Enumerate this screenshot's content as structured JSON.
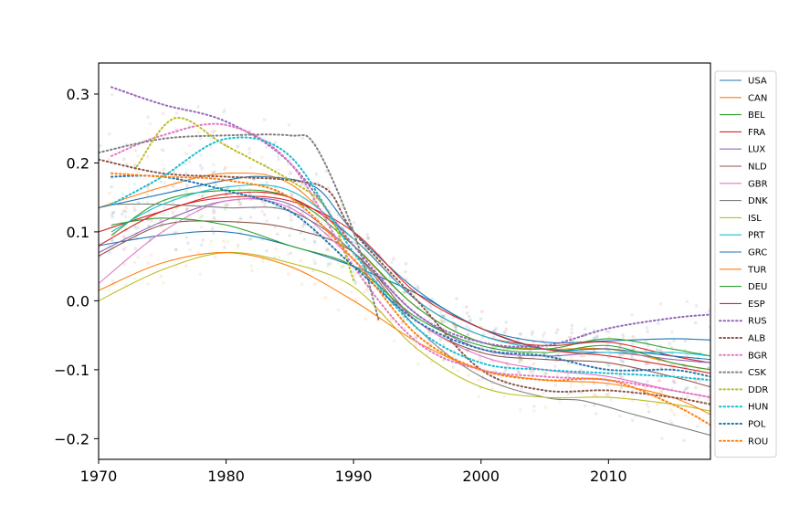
{
  "chart_data": {
    "type": "line",
    "title": "",
    "xlabel": "",
    "ylabel": "",
    "xlim": [
      1970,
      2018
    ],
    "ylim": [
      -0.23,
      0.345
    ],
    "xticks": [
      1970,
      1980,
      1990,
      2000,
      2010
    ],
    "yticks": [
      -0.2,
      -0.1,
      0.0,
      0.1,
      0.2,
      0.3
    ],
    "ytick_labels": [
      "−0.2",
      "−0.1",
      "0.0",
      "0.1",
      "0.2",
      "0.3"
    ],
    "grid": false,
    "legend_position": "right, outside plot area",
    "series": [
      {
        "name": "USA",
        "color": "#1f77b4",
        "style": "solid",
        "x": [
          1970,
          1975,
          1980,
          1985,
          1990,
          1995,
          2000,
          2005,
          2010,
          2015,
          2018
        ],
        "y": [
          0.08,
          0.095,
          0.1,
          0.08,
          0.05,
          0.01,
          -0.04,
          -0.06,
          -0.058,
          -0.055,
          -0.057
        ]
      },
      {
        "name": "CAN",
        "color": "#ff7f0e",
        "style": "solid",
        "x": [
          1970,
          1975,
          1980,
          1985,
          1990,
          1995,
          2000,
          2005,
          2010,
          2015,
          2018
        ],
        "y": [
          0.135,
          0.165,
          0.185,
          0.17,
          0.08,
          -0.01,
          -0.06,
          -0.07,
          -0.07,
          -0.09,
          -0.1
        ]
      },
      {
        "name": "BEL",
        "color": "#2ca02c",
        "style": "solid",
        "x": [
          1971,
          1975,
          1980,
          1985,
          1990,
          1995,
          2000,
          2005,
          2010,
          2015,
          2018
        ],
        "y": [
          0.095,
          0.145,
          0.16,
          0.15,
          0.08,
          -0.01,
          -0.06,
          -0.07,
          -0.055,
          -0.07,
          -0.08
        ]
      },
      {
        "name": "FRA",
        "color": "#d62728",
        "style": "solid",
        "x": [
          1970,
          1975,
          1980,
          1985,
          1990,
          1995,
          2000,
          2005,
          2010,
          2015,
          2018
        ],
        "y": [
          0.1,
          0.13,
          0.155,
          0.15,
          0.09,
          0.0,
          -0.05,
          -0.065,
          -0.06,
          -0.08,
          -0.09
        ]
      },
      {
        "name": "LUX",
        "color": "#9467bd",
        "style": "solid",
        "x": [
          1970,
          1975,
          1980,
          1985,
          1990,
          1995,
          2000,
          2005,
          2010,
          2015,
          2018
        ],
        "y": [
          0.07,
          0.115,
          0.145,
          0.14,
          0.07,
          -0.02,
          -0.07,
          -0.08,
          -0.075,
          -0.085,
          -0.09
        ]
      },
      {
        "name": "NLD",
        "color": "#8c564b",
        "style": "solid",
        "x": [
          1970,
          1975,
          1980,
          1985,
          1990,
          1995,
          2000,
          2005,
          2010,
          2015,
          2018
        ],
        "y": [
          0.065,
          0.11,
          0.115,
          0.105,
          0.07,
          -0.03,
          -0.075,
          -0.085,
          -0.09,
          -0.11,
          -0.125
        ]
      },
      {
        "name": "GBR",
        "color": "#e377c2",
        "style": "solid",
        "x": [
          1970,
          1975,
          1980,
          1985,
          1990,
          1995,
          2000,
          2005,
          2010,
          2015,
          2018
        ],
        "y": [
          0.025,
          0.1,
          0.145,
          0.135,
          0.06,
          -0.03,
          -0.08,
          -0.1,
          -0.11,
          -0.13,
          -0.14
        ]
      },
      {
        "name": "DNK",
        "color": "#7f7f7f",
        "style": "solid",
        "x": [
          1971,
          1975,
          1980,
          1985,
          1990,
          1995,
          2000,
          2005,
          2008,
          2012,
          2015,
          2018
        ],
        "y": [
          0.14,
          0.14,
          0.135,
          0.13,
          0.07,
          -0.04,
          -0.11,
          -0.14,
          -0.145,
          -0.165,
          -0.18,
          -0.195
        ]
      },
      {
        "name": "ISL",
        "color": "#bcbd22",
        "style": "solid",
        "x": [
          1970,
          1975,
          1980,
          1985,
          1990,
          1995,
          2000,
          2005,
          2010,
          2015,
          2018
        ],
        "y": [
          0.0,
          0.045,
          0.07,
          0.055,
          0.02,
          -0.07,
          -0.125,
          -0.14,
          -0.14,
          -0.15,
          -0.16
        ]
      },
      {
        "name": "PRT",
        "color": "#17becf",
        "style": "solid",
        "x": [
          1971,
          1975,
          1980,
          1985,
          1990,
          1995,
          2000,
          2005,
          2010,
          2015,
          2018
        ],
        "y": [
          0.1,
          0.14,
          0.165,
          0.16,
          0.09,
          0.0,
          -0.05,
          -0.07,
          -0.075,
          -0.075,
          -0.08
        ]
      },
      {
        "name": "GRC",
        "color": "#1f77b4",
        "style": "solid",
        "x": [
          1970,
          1975,
          1980,
          1983,
          1987,
          1990,
          1995,
          2000,
          2005,
          2010,
          2015,
          2018
        ],
        "y": [
          0.135,
          0.155,
          0.175,
          0.18,
          0.165,
          0.1,
          0.015,
          -0.04,
          -0.07,
          -0.07,
          -0.08,
          -0.085
        ]
      },
      {
        "name": "TUR",
        "color": "#ff7f0e",
        "style": "solid",
        "x": [
          1970,
          1975,
          1980,
          1985,
          1990,
          1995,
          2000,
          2005,
          2010,
          2015,
          2018
        ],
        "y": [
          0.015,
          0.055,
          0.07,
          0.05,
          0.0,
          -0.06,
          -0.1,
          -0.115,
          -0.12,
          -0.14,
          -0.165
        ]
      },
      {
        "name": "DEU",
        "color": "#2ca02c",
        "style": "solid",
        "x": [
          1971,
          1975,
          1980,
          1985,
          1990,
          1995,
          2000,
          2005,
          2010,
          2015,
          2018
        ],
        "y": [
          0.11,
          0.12,
          0.11,
          0.08,
          0.05,
          -0.025,
          -0.065,
          -0.075,
          -0.065,
          -0.09,
          -0.1
        ]
      },
      {
        "name": "ESP",
        "color": "#d62728",
        "style": "solid",
        "x": [
          1970,
          1975,
          1980,
          1985,
          1990,
          1995,
          2000,
          2005,
          2010,
          2015,
          2018
        ],
        "y": [
          0.08,
          0.13,
          0.15,
          0.145,
          0.1,
          0.01,
          -0.04,
          -0.07,
          -0.08,
          -0.095,
          -0.105
        ]
      },
      {
        "name": "RUS",
        "color": "#9467bd",
        "style": "dotted",
        "x": [
          1971,
          1975,
          1980,
          1985,
          1990,
          1995,
          2000,
          2005,
          2010,
          2015,
          2018
        ],
        "y": [
          0.31,
          0.285,
          0.26,
          0.2,
          0.08,
          -0.02,
          -0.06,
          -0.065,
          -0.04,
          -0.025,
          -0.02
        ]
      },
      {
        "name": "ALB",
        "color": "#8c564b",
        "style": "dotted",
        "x": [
          1970,
          1975,
          1980,
          1985,
          1988,
          1990,
          1995,
          2000,
          2005,
          2010,
          2015,
          2018
        ],
        "y": [
          0.205,
          0.185,
          0.18,
          0.175,
          0.16,
          0.1,
          0.0,
          -0.1,
          -0.13,
          -0.13,
          -0.14,
          -0.15
        ]
      },
      {
        "name": "BGR",
        "color": "#e377c2",
        "style": "dotted",
        "x": [
          1971,
          1975,
          1980,
          1985,
          1990,
          1995,
          2000,
          2005,
          2010,
          2015,
          2018
        ],
        "y": [
          0.21,
          0.24,
          0.255,
          0.2,
          0.05,
          -0.06,
          -0.1,
          -0.11,
          -0.115,
          -0.13,
          -0.14
        ]
      },
      {
        "name": "CSK",
        "color": "#7f7f7f",
        "style": "dotted",
        "x": [
          1970,
          1975,
          1980,
          1985,
          1987,
          1990,
          1992
        ],
        "y": [
          0.215,
          0.235,
          0.24,
          0.24,
          0.225,
          0.1,
          -0.03
        ]
      },
      {
        "name": "DDR",
        "color": "#bcbd22",
        "style": "dotted",
        "x": [
          1973,
          1976,
          1980,
          1985,
          1988,
          1990
        ],
        "y": [
          0.195,
          0.265,
          0.225,
          0.175,
          0.13,
          0.03
        ]
      },
      {
        "name": "HUN",
        "color": "#17becf",
        "style": "dotted",
        "x": [
          1971,
          1975,
          1980,
          1985,
          1990,
          1995,
          2000,
          2005,
          2010,
          2015,
          2018
        ],
        "y": [
          0.14,
          0.18,
          0.235,
          0.21,
          0.07,
          -0.04,
          -0.09,
          -0.1,
          -0.105,
          -0.11,
          -0.115
        ]
      },
      {
        "name": "POL",
        "color": "#1f77b4",
        "style": "dotted",
        "x": [
          1971,
          1975,
          1980,
          1985,
          1990,
          1995,
          2000,
          2005,
          2010,
          2015,
          2018
        ],
        "y": [
          0.18,
          0.18,
          0.16,
          0.13,
          0.05,
          -0.03,
          -0.07,
          -0.08,
          -0.1,
          -0.1,
          -0.11
        ]
      },
      {
        "name": "ROU",
        "color": "#ff7f0e",
        "style": "dotted",
        "x": [
          1971,
          1975,
          1980,
          1985,
          1990,
          1995,
          2000,
          2005,
          2010,
          2015,
          2018
        ],
        "y": [
          0.185,
          0.18,
          0.175,
          0.15,
          0.06,
          -0.05,
          -0.1,
          -0.115,
          -0.115,
          -0.15,
          -0.18
        ]
      }
    ]
  }
}
